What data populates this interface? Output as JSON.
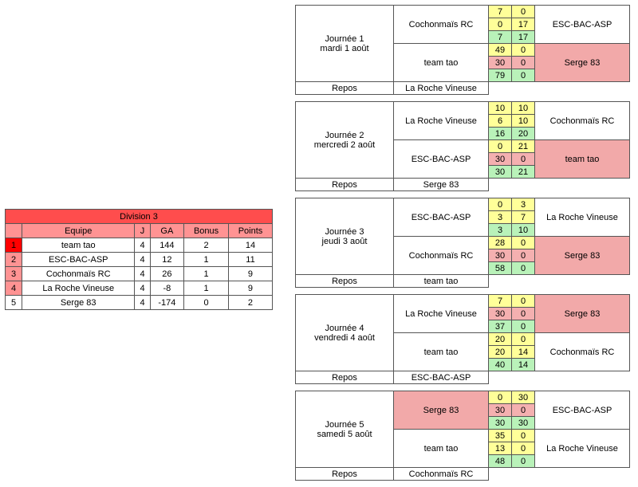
{
  "standings": {
    "title": "Division 3",
    "headers": {
      "team": "Equipe",
      "played": "J",
      "ga": "GA",
      "bonus": "Bonus",
      "points": "Points"
    },
    "rows": [
      {
        "rank": "1",
        "team": "team tao",
        "played": "4",
        "ga": "144",
        "bonus": "2",
        "points": "14"
      },
      {
        "rank": "2",
        "team": "ESC-BAC-ASP",
        "played": "4",
        "ga": "12",
        "bonus": "1",
        "points": "11"
      },
      {
        "rank": "3",
        "team": "Cochonmaïs RC",
        "played": "4",
        "ga": "26",
        "bonus": "1",
        "points": "9"
      },
      {
        "rank": "4",
        "team": "La Roche Vineuse",
        "played": "4",
        "ga": "-8",
        "bonus": "1",
        "points": "9"
      },
      {
        "rank": "5",
        "team": "Serge 83",
        "played": "4",
        "ga": "-174",
        "bonus": "0",
        "points": "2"
      }
    ]
  },
  "repos_label": "Repos",
  "journees": [
    {
      "label1": "Journée 1",
      "label2": "mardi 1 août",
      "matches": [
        {
          "home": "Cochonmaïs RC",
          "away": "ESC-BAC-ASP",
          "s1h": "7",
          "s1a": "0",
          "s2h": "0",
          "s2a": "17",
          "s3h": "7",
          "s3a": "17",
          "away_bg": ""
        },
        {
          "home": "team tao",
          "away": "Serge 83",
          "s1h": "49",
          "s1a": "0",
          "s2h": "30",
          "s2a": "0",
          "s3h": "79",
          "s3a": "0",
          "away_bg": "pink"
        }
      ],
      "repos": "La Roche Vineuse"
    },
    {
      "label1": "Journée 2",
      "label2": "mercredi 2 août",
      "matches": [
        {
          "home": "La Roche Vineuse",
          "away": "Cochonmaïs RC",
          "s1h": "10",
          "s1a": "10",
          "s2h": "6",
          "s2a": "10",
          "s3h": "16",
          "s3a": "20",
          "away_bg": ""
        },
        {
          "home": "ESC-BAC-ASP",
          "away": "team tao",
          "s1h": "0",
          "s1a": "21",
          "s2h": "30",
          "s2a": "0",
          "s3h": "30",
          "s3a": "21",
          "away_bg": "pink"
        }
      ],
      "repos": "Serge 83"
    },
    {
      "label1": "Journée 3",
      "label2": "jeudi 3 août",
      "matches": [
        {
          "home": "ESC-BAC-ASP",
          "away": "La Roche Vineuse",
          "s1h": "0",
          "s1a": "3",
          "s2h": "3",
          "s2a": "7",
          "s3h": "3",
          "s3a": "10",
          "away_bg": ""
        },
        {
          "home": "Cochonmaïs RC",
          "away": "Serge 83",
          "s1h": "28",
          "s1a": "0",
          "s2h": "30",
          "s2a": "0",
          "s3h": "58",
          "s3a": "0",
          "away_bg": "pink"
        }
      ],
      "repos": "team tao"
    },
    {
      "label1": "Journée 4",
      "label2": "vendredi 4 août",
      "matches": [
        {
          "home": "La Roche Vineuse",
          "away": "Serge 83",
          "s1h": "7",
          "s1a": "0",
          "s2h": "30",
          "s2a": "0",
          "s3h": "37",
          "s3a": "0",
          "away_bg": "pink"
        },
        {
          "home": "team tao",
          "away": "Cochonmaïs RC",
          "s1h": "20",
          "s1a": "0",
          "s2h": "20",
          "s2a": "14",
          "s3h": "40",
          "s3a": "14",
          "away_bg": ""
        }
      ],
      "repos": "ESC-BAC-ASP"
    },
    {
      "label1": "Journée 5",
      "label2": "samedi 5 août",
      "matches": [
        {
          "home": "Serge 83",
          "away": "ESC-BAC-ASP",
          "s1h": "0",
          "s1a": "30",
          "s2h": "30",
          "s2a": "0",
          "s3h": "30",
          "s3a": "30",
          "away_bg": "",
          "home_bg": "pink"
        },
        {
          "home": "team tao",
          "away": "La Roche Vineuse",
          "s1h": "35",
          "s1a": "0",
          "s2h": "13",
          "s2a": "0",
          "s3h": "48",
          "s3a": "0",
          "away_bg": ""
        }
      ],
      "repos": "Cochonmaïs RC"
    }
  ]
}
